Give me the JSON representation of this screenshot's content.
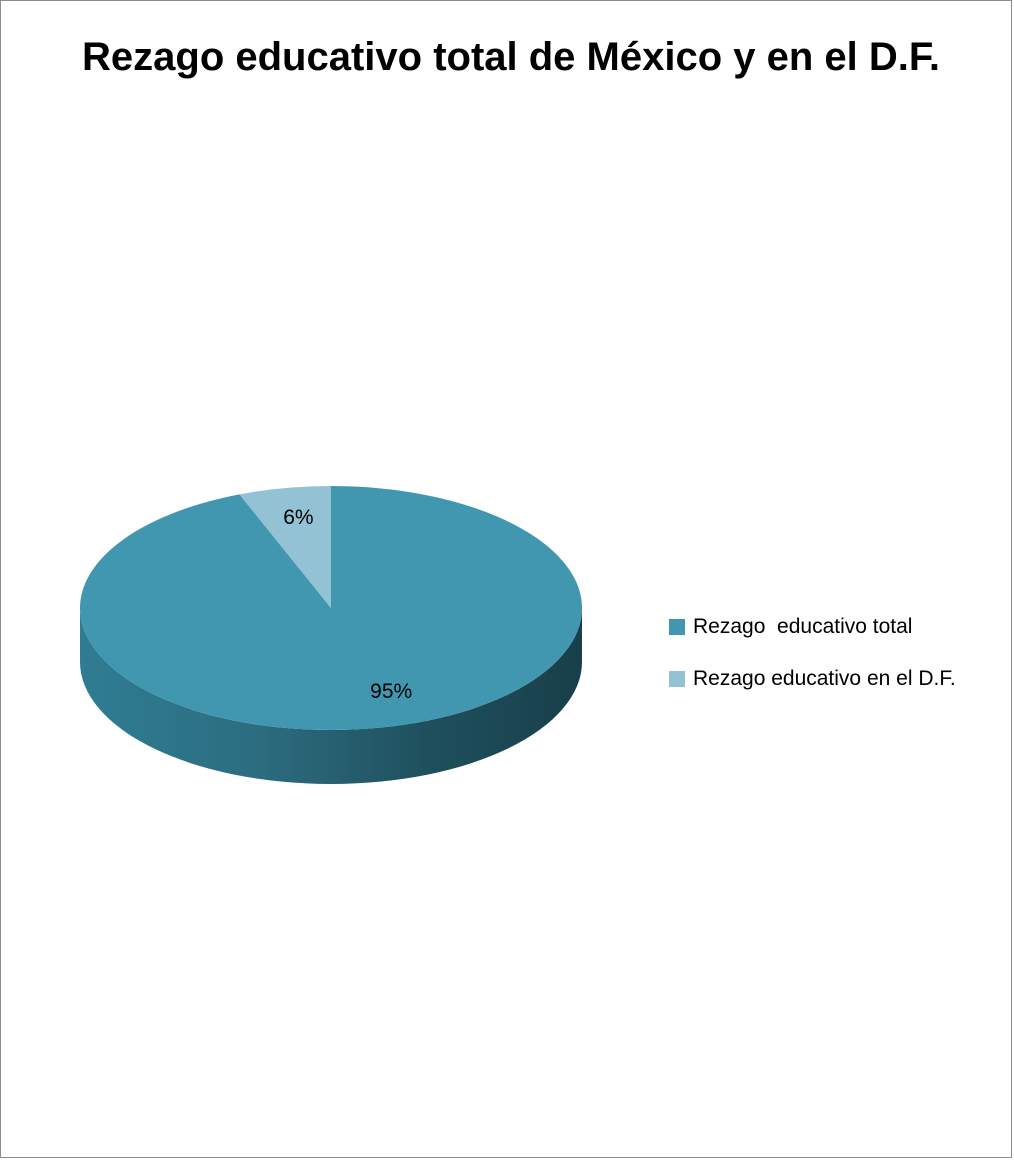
{
  "chart_data": {
    "type": "pie",
    "title": "Rezago educativo total de México y en el D.F.",
    "style": "3d",
    "slices": [
      {
        "label": "Rezago  educativo total",
        "value": 95,
        "display": "95%",
        "color": "#4297b0"
      },
      {
        "label": "Rezago educativo en el D.F.",
        "value": 6,
        "display": "6%",
        "color": "#93c2d5"
      }
    ],
    "legend_position": "right"
  }
}
